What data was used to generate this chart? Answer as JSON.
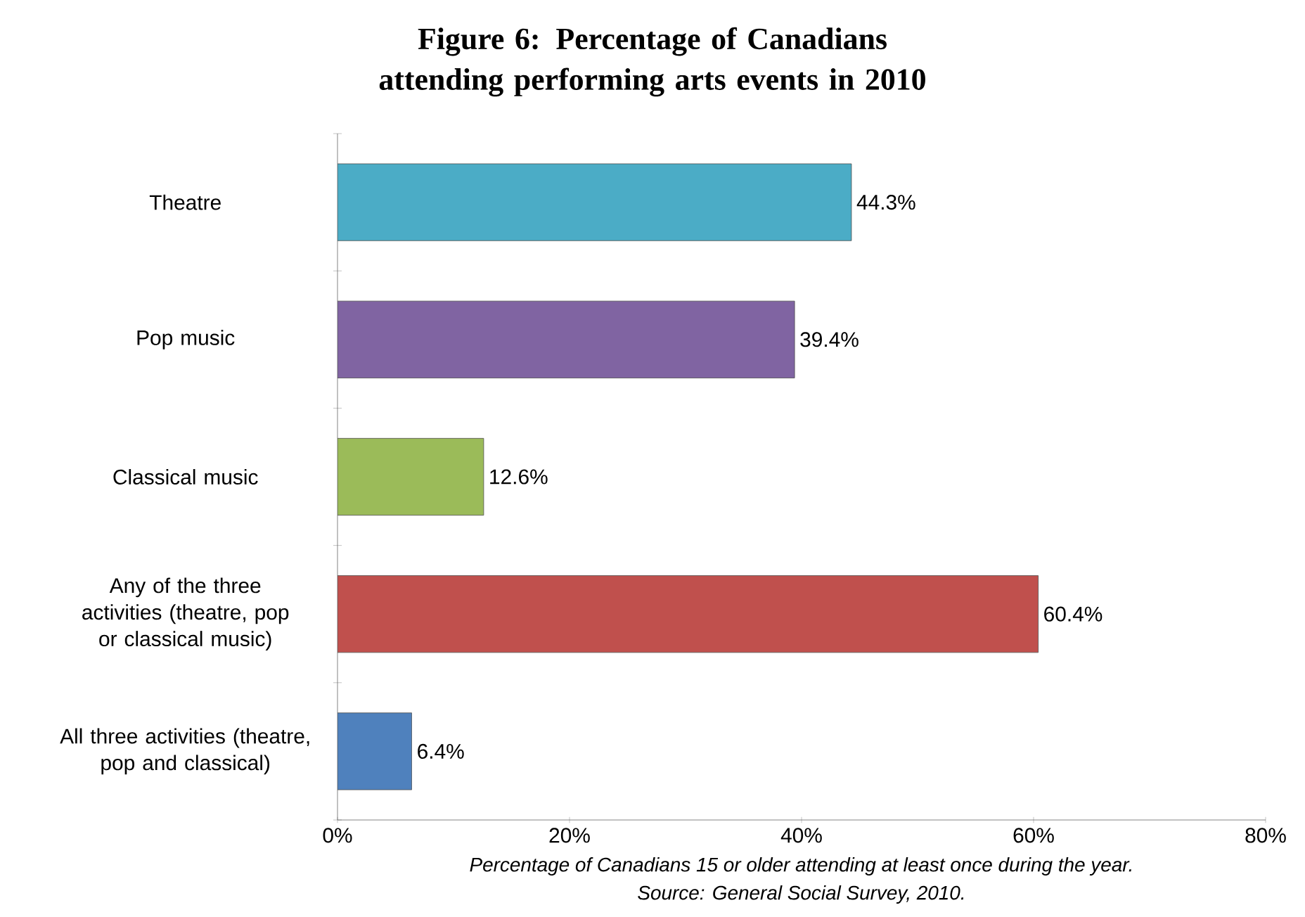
{
  "chart_data": {
    "type": "bar",
    "orientation": "horizontal",
    "title": "Figure 6: Percentage of Canadians attending performing arts events in 2010",
    "categories": [
      "Theatre",
      "Pop music",
      "Classical music",
      "Any of the three activities (theatre, pop or classical music)",
      "All three activities (theatre, pop and classical)"
    ],
    "values": [
      44.3,
      39.4,
      12.6,
      60.4,
      6.4
    ],
    "colors": [
      "#4bacc6",
      "#8064a2",
      "#9bbb59",
      "#c0504d",
      "#4f81bd"
    ],
    "value_labels": [
      "44.3%",
      "39.4%",
      "12.6%",
      "60.4%",
      "6.4%"
    ],
    "xlim": [
      0,
      80
    ],
    "xticks": [
      {
        "value": 0,
        "label": "0%"
      },
      {
        "value": 20,
        "label": "20%"
      },
      {
        "value": 40,
        "label": "40%"
      },
      {
        "value": 60,
        "label": "60%"
      },
      {
        "value": 80,
        "label": "80%"
      }
    ],
    "annotations": [
      "Percentage of Canadians 15 or older attending at least once during the year.",
      "Source: General Social Survey, 2010."
    ]
  }
}
